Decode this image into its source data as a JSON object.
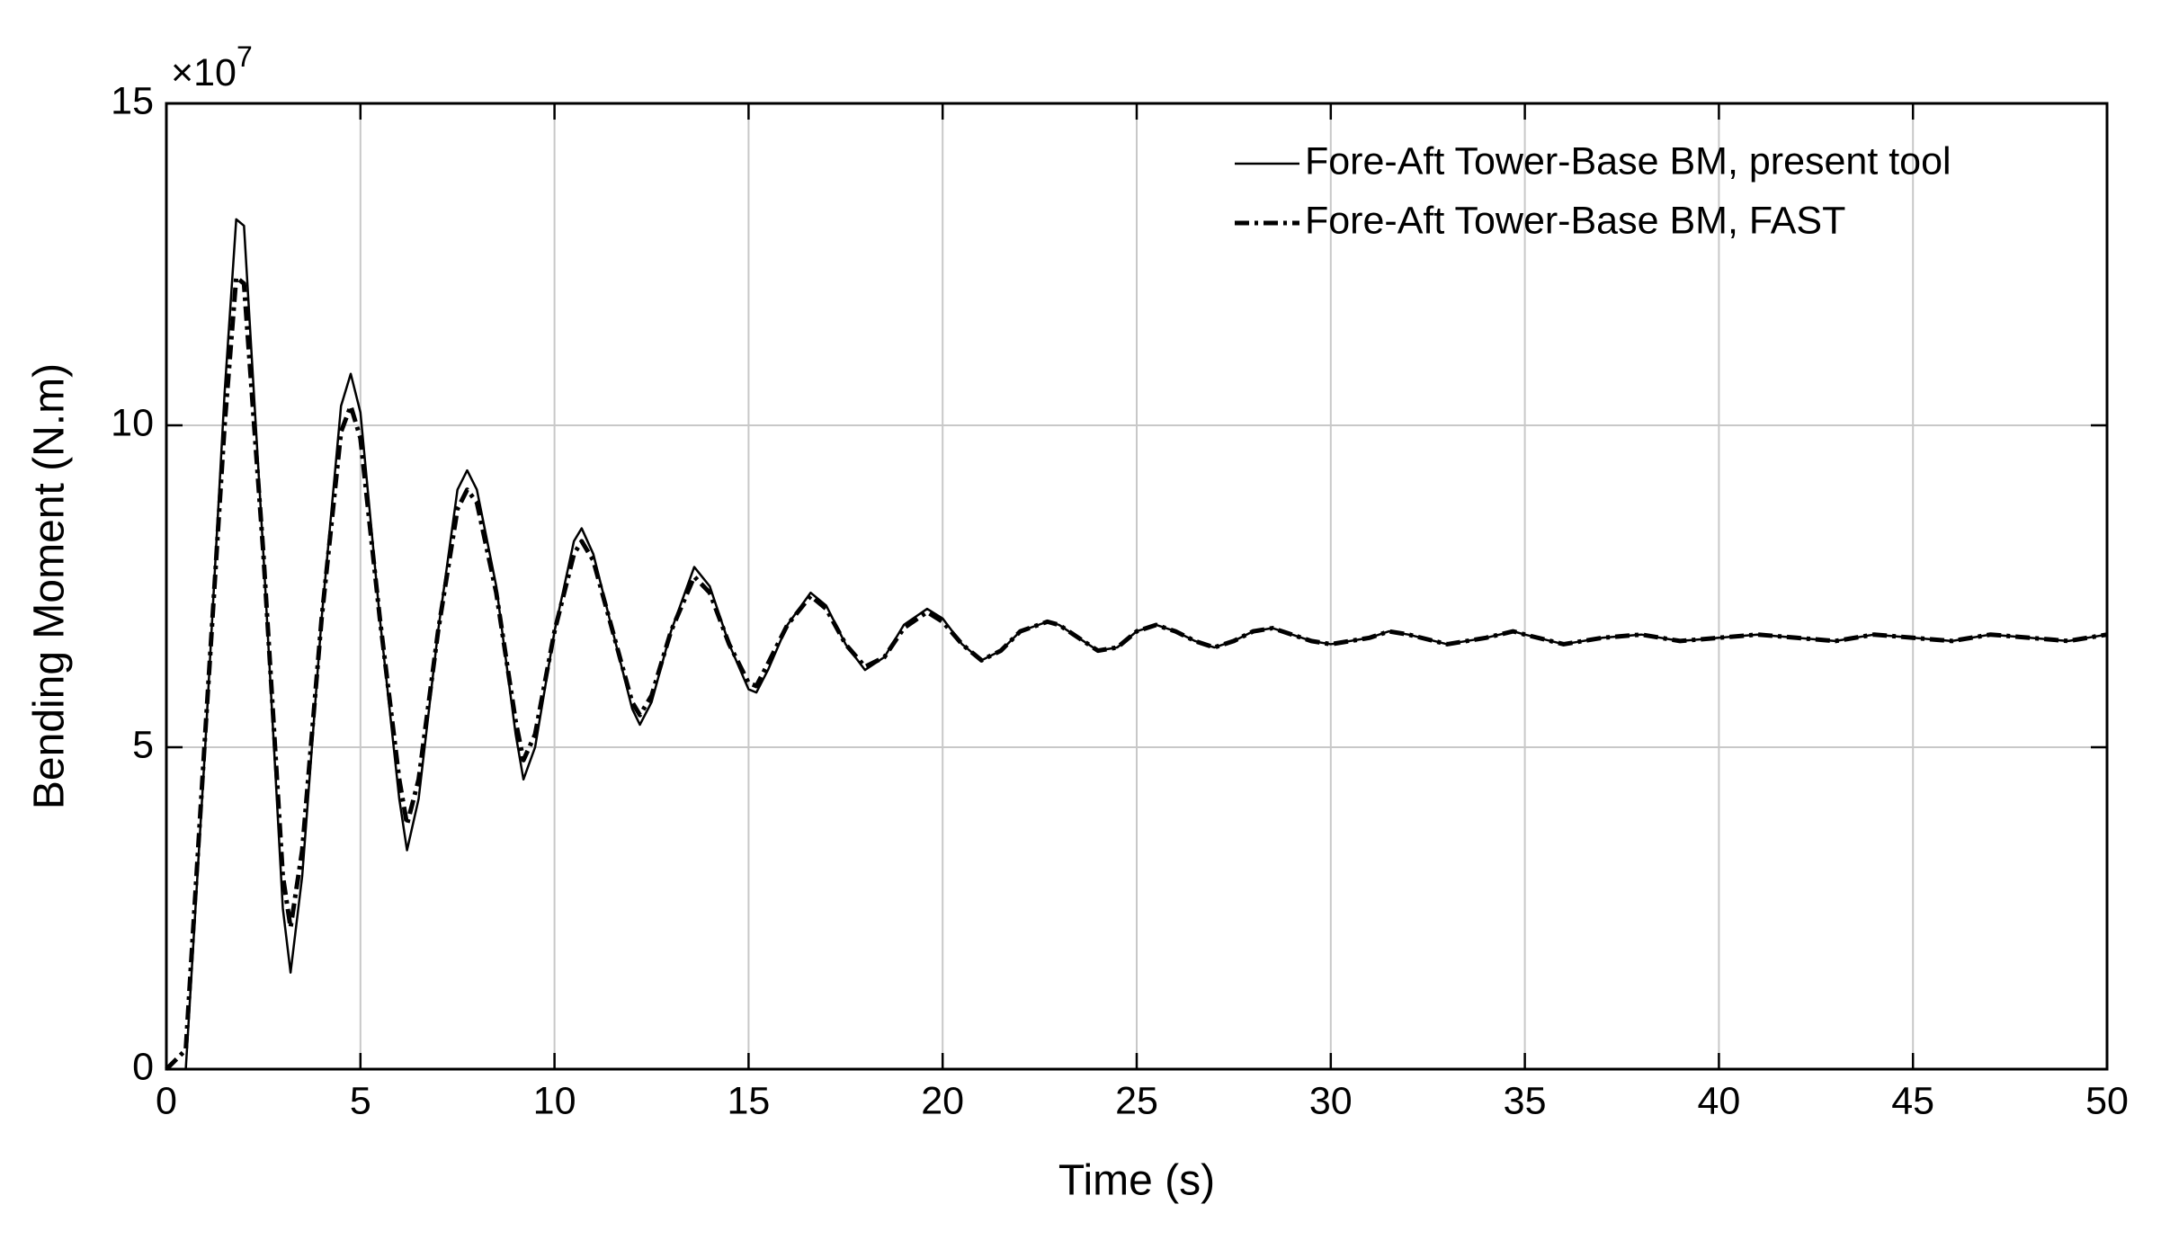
{
  "chart_data": {
    "type": "line",
    "x_label": "Time (s)",
    "y_label": "Bending Moment (N.m)",
    "y_multiplier": {
      "base": "×10",
      "exponent": "7"
    },
    "x": [
      0,
      0.5,
      1,
      1.5,
      1.8,
      2,
      2.5,
      3,
      3.2,
      3.5,
      4,
      4.5,
      4.75,
      5,
      5.5,
      6,
      6.2,
      6.5,
      7,
      7.5,
      7.75,
      8,
      8.5,
      9,
      9.2,
      9.5,
      10,
      10.5,
      10.7,
      11,
      11.5,
      12,
      12.2,
      12.5,
      13,
      13.6,
      14,
      14.5,
      15,
      15.2,
      15.5,
      16,
      16.6,
      17,
      17.5,
      18,
      18.5,
      19,
      19.6,
      20,
      20.5,
      21,
      21.5,
      22,
      22.7,
      23,
      23.5,
      24,
      24.5,
      25,
      25.5,
      26,
      26.5,
      27,
      27.5,
      28,
      28.5,
      29,
      29.5,
      30,
      31,
      31.5,
      32,
      33,
      34,
      34.7,
      35,
      36,
      37,
      38,
      39,
      40,
      41,
      42,
      43,
      44,
      45,
      46,
      47,
      48,
      49,
      50
    ],
    "series": [
      {
        "name": "Fore-Aft Tower-Base BM, present tool",
        "color": "#000000",
        "style": "solid",
        "values": [
          0,
          0,
          5,
          10.5,
          13.2,
          13.1,
          8,
          2.5,
          1.5,
          3,
          7,
          10.3,
          10.8,
          10.2,
          7,
          4.2,
          3.4,
          4.2,
          6.8,
          9,
          9.3,
          9,
          7.5,
          5.2,
          4.5,
          5,
          6.8,
          8.2,
          8.4,
          8,
          6.8,
          5.6,
          5.35,
          5.7,
          6.8,
          7.8,
          7.5,
          6.6,
          5.9,
          5.85,
          6.2,
          6.9,
          7.4,
          7.2,
          6.6,
          6.2,
          6.4,
          6.9,
          7.15,
          7.0,
          6.6,
          6.35,
          6.5,
          6.8,
          6.95,
          6.9,
          6.7,
          6.5,
          6.55,
          6.8,
          6.9,
          6.8,
          6.65,
          6.55,
          6.65,
          6.8,
          6.85,
          6.75,
          6.65,
          6.6,
          6.7,
          6.8,
          6.75,
          6.6,
          6.7,
          6.8,
          6.75,
          6.6,
          6.7,
          6.75,
          6.65,
          6.7,
          6.75,
          6.7,
          6.65,
          6.75,
          6.7,
          6.65,
          6.75,
          6.7,
          6.65,
          6.75
        ]
      },
      {
        "name": "Fore-Aft Tower-Base BM, FAST",
        "color": "#000000",
        "style": "dashdot",
        "values": [
          0,
          0.3,
          5.2,
          10,
          12.3,
          12.2,
          8,
          3,
          2.2,
          3.4,
          7,
          9.9,
          10.3,
          9.8,
          7,
          4.5,
          3.8,
          4.5,
          6.8,
          8.7,
          9.0,
          8.8,
          7.4,
          5.4,
          4.8,
          5.2,
          6.8,
          8.0,
          8.2,
          7.9,
          6.8,
          5.7,
          5.5,
          5.8,
          6.8,
          7.65,
          7.4,
          6.6,
          6.0,
          5.95,
          6.3,
          6.9,
          7.35,
          7.15,
          6.6,
          6.25,
          6.4,
          6.85,
          7.1,
          6.95,
          6.6,
          6.35,
          6.5,
          6.8,
          6.95,
          6.9,
          6.7,
          6.5,
          6.55,
          6.8,
          6.9,
          6.8,
          6.65,
          6.55,
          6.65,
          6.8,
          6.85,
          6.75,
          6.65,
          6.6,
          6.7,
          6.8,
          6.75,
          6.6,
          6.7,
          6.8,
          6.75,
          6.6,
          6.7,
          6.75,
          6.65,
          6.7,
          6.75,
          6.7,
          6.65,
          6.75,
          6.7,
          6.65,
          6.75,
          6.7,
          6.65,
          6.75
        ]
      }
    ],
    "xlim": [
      0,
      50
    ],
    "xticks": [
      0,
      5,
      10,
      15,
      20,
      25,
      30,
      35,
      40,
      45,
      50
    ],
    "ylim": [
      0,
      15
    ],
    "yticks": [
      0,
      5,
      10,
      15
    ],
    "grid": true,
    "legend": "upper right"
  }
}
